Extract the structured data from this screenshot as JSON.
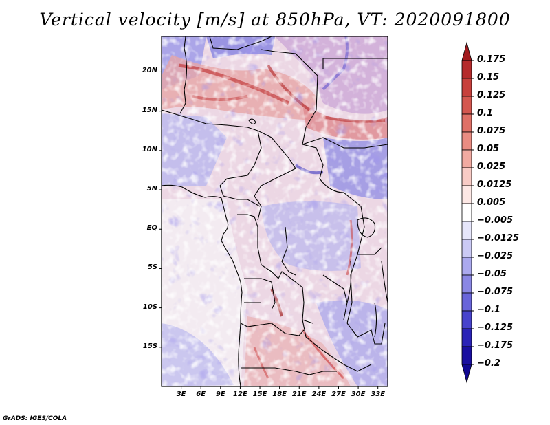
{
  "title": "Vertical velocity [m/s] at 850hPa, VT: 2020091800",
  "credit": "GrADS: IGES/COLA",
  "map": {
    "lon_range": [
      0,
      34.5
    ],
    "lat_range": [
      -20,
      24.5
    ],
    "y_ticks": [
      {
        "lat": 20,
        "label": "20N"
      },
      {
        "lat": 15,
        "label": "15N"
      },
      {
        "lat": 10,
        "label": "10N"
      },
      {
        "lat": 5,
        "label": "5N"
      },
      {
        "lat": 0,
        "label": "EQ"
      },
      {
        "lat": -5,
        "label": "5S"
      },
      {
        "lat": -10,
        "label": "10S"
      },
      {
        "lat": -15,
        "label": "15S"
      }
    ],
    "x_ticks": [
      {
        "lon": 3,
        "label": "3E"
      },
      {
        "lon": 6,
        "label": "6E"
      },
      {
        "lon": 9,
        "label": "9E"
      },
      {
        "lon": 12,
        "label": "12E"
      },
      {
        "lon": 15,
        "label": "15E"
      },
      {
        "lon": 18,
        "label": "18E"
      },
      {
        "lon": 21,
        "label": "21E"
      },
      {
        "lon": 24,
        "label": "24E"
      },
      {
        "lon": 27,
        "label": "27E"
      },
      {
        "lon": 30,
        "label": "30E"
      },
      {
        "lon": 33,
        "label": "33E"
      }
    ]
  },
  "colorbar": {
    "levels": [
      "0.175",
      "0.15",
      "0.125",
      "0.1",
      "0.075",
      "0.05",
      "0.025",
      "0.0125",
      "0.005",
      "−0.005",
      "−0.0125",
      "−0.025",
      "−0.05",
      "−0.075",
      "−0.1",
      "−0.125",
      "−0.175",
      "−0.2"
    ],
    "colors": [
      "#a11a1e",
      "#b52a2b",
      "#c7403c",
      "#d4574f",
      "#df7066",
      "#e98c82",
      "#f1aaa1",
      "#f8cbc5",
      "#fde8e5",
      "#ffffff",
      "#e6e6fb",
      "#cbcaf5",
      "#aba9ee",
      "#8a87e4",
      "#6965da",
      "#4843cc",
      "#2b23b7",
      "#1a0fa0",
      "#110892"
    ]
  }
}
